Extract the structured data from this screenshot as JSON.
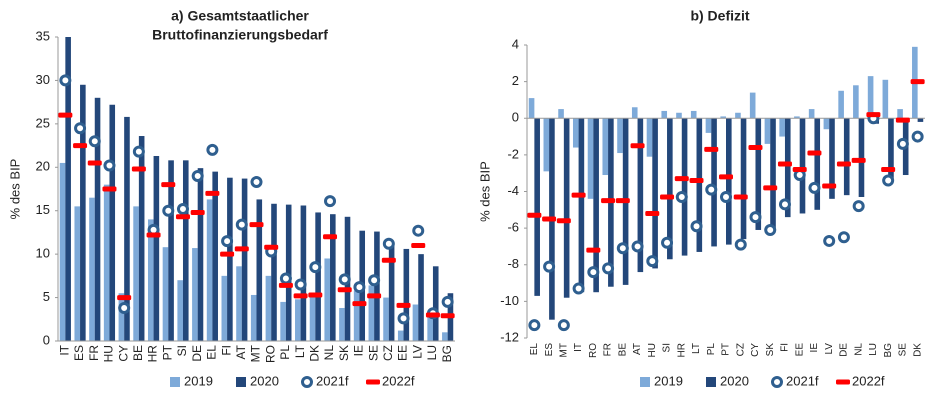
{
  "chart_data": [
    {
      "type": "bar",
      "title": [
        "a) Gesamtstaatlicher",
        "Bruttofinanzierungsbedarf"
      ],
      "ylabel": "% des BIP",
      "categories": [
        "IT",
        "ES",
        "FR",
        "HU",
        "CY",
        "BE",
        "HR",
        "PT",
        "SI",
        "DE",
        "EL",
        "FI",
        "AT",
        "MT",
        "RO",
        "PL",
        "LT",
        "DK",
        "NL",
        "SK",
        "IE",
        "SE",
        "CZ",
        "EE",
        "LV",
        "LU",
        "BG"
      ],
      "series": [
        {
          "name": "2019",
          "type": "bar",
          "color": "#7eaad9",
          "values": [
            20.5,
            15.5,
            16.5,
            18,
            5.5,
            15.5,
            14,
            10.8,
            7,
            10.7,
            16.3,
            7.5,
            8.6,
            5.3,
            7.5,
            4.5,
            4.8,
            5.3,
            9.5,
            3.8,
            5.8,
            6.4,
            5,
            1.2,
            4.2,
            3.2,
            1
          ]
        },
        {
          "name": "2020",
          "type": "bar",
          "color": "#23477a",
          "values": [
            35,
            29.5,
            28,
            27.2,
            25.8,
            23.6,
            21.3,
            20.8,
            20.8,
            19.9,
            19.5,
            18.8,
            18.7,
            16.3,
            15.8,
            15.7,
            15.6,
            14.8,
            14.6,
            14.3,
            12.7,
            12.6,
            11,
            10.6,
            10,
            8.6,
            5.5
          ]
        },
        {
          "name": "2021f",
          "type": "ring",
          "color": "#2f5f8f",
          "values": [
            30,
            24.5,
            23,
            20.2,
            3.8,
            21.8,
            12.8,
            15,
            15.2,
            19,
            22,
            11.5,
            13.4,
            18.3,
            10.3,
            7.2,
            6.5,
            8.5,
            16.1,
            7.1,
            6.2,
            7,
            11.2,
            2.6,
            12.7,
            3.2,
            4.5
          ]
        },
        {
          "name": "2022f",
          "type": "dash",
          "color": "#ff0000",
          "values": [
            26,
            22.5,
            20.5,
            17.5,
            5,
            19.8,
            12.2,
            18,
            14.3,
            14.8,
            17,
            10,
            10.6,
            13.4,
            10.8,
            6.4,
            5.2,
            5.3,
            12,
            5.9,
            4.3,
            5.2,
            9.3,
            4.1,
            11,
            3,
            2.9
          ]
        }
      ],
      "ylim": [
        0,
        35
      ],
      "yticks": [
        0,
        5,
        10,
        15,
        20,
        25,
        30,
        35
      ]
    },
    {
      "type": "bar",
      "title": [
        "b) Defizit"
      ],
      "ylabel": "% des BIP",
      "categories": [
        "EL",
        "ES",
        "MT",
        "IT",
        "RO",
        "FR",
        "BE",
        "AT",
        "HU",
        "SI",
        "HR",
        "LT",
        "PL",
        "PT",
        "CZ",
        "CY",
        "SK",
        "FI",
        "EE",
        "IE",
        "LV",
        "DE",
        "NL",
        "LU",
        "BG",
        "SE",
        "DK"
      ],
      "series": [
        {
          "name": "2019",
          "type": "bar",
          "color": "#7eaad9",
          "values": [
            1.1,
            -2.9,
            0.5,
            -1.6,
            -4.4,
            -3.1,
            -1.9,
            0.6,
            -2.1,
            0.4,
            0.3,
            0.4,
            -0.8,
            0.1,
            0.3,
            1.4,
            -1.4,
            -1,
            0.1,
            0.5,
            -0.6,
            1.5,
            1.8,
            2.3,
            2.1,
            0.5,
            3.9
          ]
        },
        {
          "name": "2020",
          "type": "bar",
          "color": "#23477a",
          "values": [
            -9.7,
            -11,
            -9.8,
            -9.5,
            -9.5,
            -9.2,
            -9.1,
            -8.4,
            -8.2,
            -7.7,
            -7.5,
            -7.3,
            -7,
            -6.9,
            -6.6,
            -6.1,
            -6.1,
            -5.4,
            -5.2,
            -5,
            -4.4,
            -4.2,
            -4.3,
            -0.3,
            -3.4,
            -3.1,
            -0.2
          ]
        },
        {
          "name": "2021f",
          "type": "ring",
          "color": "#2f5f8f",
          "values": [
            -11.3,
            -8.1,
            -11.3,
            -9.3,
            -8.4,
            -8.2,
            -7.1,
            -7,
            -7.8,
            -6.8,
            -4.3,
            -5.9,
            -3.9,
            -4.3,
            -6.9,
            -5.4,
            -6.1,
            -4.7,
            -3.1,
            -3.8,
            -6.7,
            -6.5,
            -4.8,
            0,
            -3.4,
            -1.4,
            -1
          ]
        },
        {
          "name": "2022f",
          "type": "dash",
          "color": "#ff0000",
          "values": [
            -5.3,
            -5.5,
            -5.6,
            -4.2,
            -7.2,
            -4.5,
            -4.5,
            -1.5,
            -5.2,
            -4.3,
            -3.3,
            -3.4,
            -1.7,
            -3.2,
            -4.3,
            -1.6,
            -3.8,
            -2.5,
            -2.8,
            -1.9,
            -3.7,
            -2.5,
            -2.3,
            0.2,
            -2.8,
            -0.1,
            2
          ]
        }
      ],
      "ylim": [
        -12,
        4
      ],
      "yticks": [
        -12,
        -10,
        -8,
        -6,
        -4,
        -2,
        0,
        2,
        4
      ]
    }
  ]
}
